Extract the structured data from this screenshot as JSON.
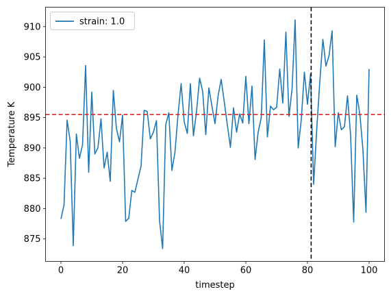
{
  "chart_data": {
    "type": "line",
    "title": "",
    "xlabel": "timestep",
    "ylabel": "Temperature K",
    "xlim": [
      -5,
      105
    ],
    "ylim": [
      871.3,
      913.2
    ],
    "xticks": [
      0,
      20,
      40,
      60,
      80,
      100
    ],
    "yticks": [
      875,
      880,
      885,
      890,
      895,
      900,
      905,
      910
    ],
    "grid": false,
    "legend_position": "upper left",
    "series": [
      {
        "name": "strain: 1.0",
        "color": "#1f77b4",
        "x": [
          0,
          1,
          2,
          3,
          4,
          5,
          6,
          7,
          8,
          9,
          10,
          11,
          12,
          13,
          14,
          15,
          16,
          17,
          18,
          19,
          20,
          21,
          22,
          23,
          24,
          25,
          26,
          27,
          28,
          29,
          30,
          31,
          32,
          33,
          34,
          35,
          36,
          37,
          38,
          39,
          40,
          41,
          42,
          43,
          44,
          45,
          46,
          47,
          48,
          49,
          50,
          51,
          52,
          53,
          54,
          55,
          56,
          57,
          58,
          59,
          60,
          61,
          62,
          63,
          64,
          65,
          66,
          67,
          68,
          69,
          70,
          71,
          72,
          73,
          74,
          75,
          76,
          77,
          78,
          79,
          80,
          81,
          82,
          83,
          84,
          85,
          86,
          87,
          88,
          89,
          90,
          91,
          92,
          93,
          94,
          95,
          96,
          97,
          98,
          99,
          100
        ],
        "y": [
          878.3,
          880.6,
          894.6,
          891.1,
          873.9,
          892.3,
          888.3,
          890.5,
          903.6,
          886.0,
          899.2,
          889.0,
          890.0,
          894.8,
          886.7,
          889.3,
          884.5,
          899.5,
          893.2,
          891.0,
          895.4,
          877.9,
          878.4,
          883.0,
          882.7,
          884.9,
          887.0,
          896.2,
          896.0,
          891.5,
          892.6,
          894.5,
          878.0,
          873.4,
          893.8,
          895.8,
          886.3,
          889.3,
          895.5,
          900.6,
          894.3,
          892.4,
          900.6,
          892.0,
          896.0,
          901.5,
          899.3,
          892.2,
          899.9,
          896.9,
          894.0,
          898.6,
          901.3,
          897.6,
          893.8,
          890.1,
          896.6,
          892.6,
          895.6,
          894.1,
          901.8,
          894.0,
          900.2,
          888.1,
          892.6,
          895.0,
          907.8,
          891.8,
          896.9,
          896.3,
          896.7,
          903.0,
          897.4,
          909.1,
          895.2,
          899.7,
          911.1,
          890.0,
          894.7,
          902.5,
          897.2,
          902.2,
          884.0,
          893.0,
          900.9,
          907.9,
          903.5,
          905.2,
          909.3,
          890.2,
          895.8,
          893.0,
          893.5,
          898.6,
          892.1,
          877.8,
          898.7,
          895.6,
          889.7,
          879.4,
          903.0
        ]
      }
    ],
    "reference_lines": [
      {
        "orientation": "horizontal",
        "value": 895.5,
        "color": "#d62728",
        "style": "dashed"
      },
      {
        "orientation": "vertical",
        "value": 81.2,
        "color": "#000000",
        "style": "dashed"
      }
    ]
  }
}
